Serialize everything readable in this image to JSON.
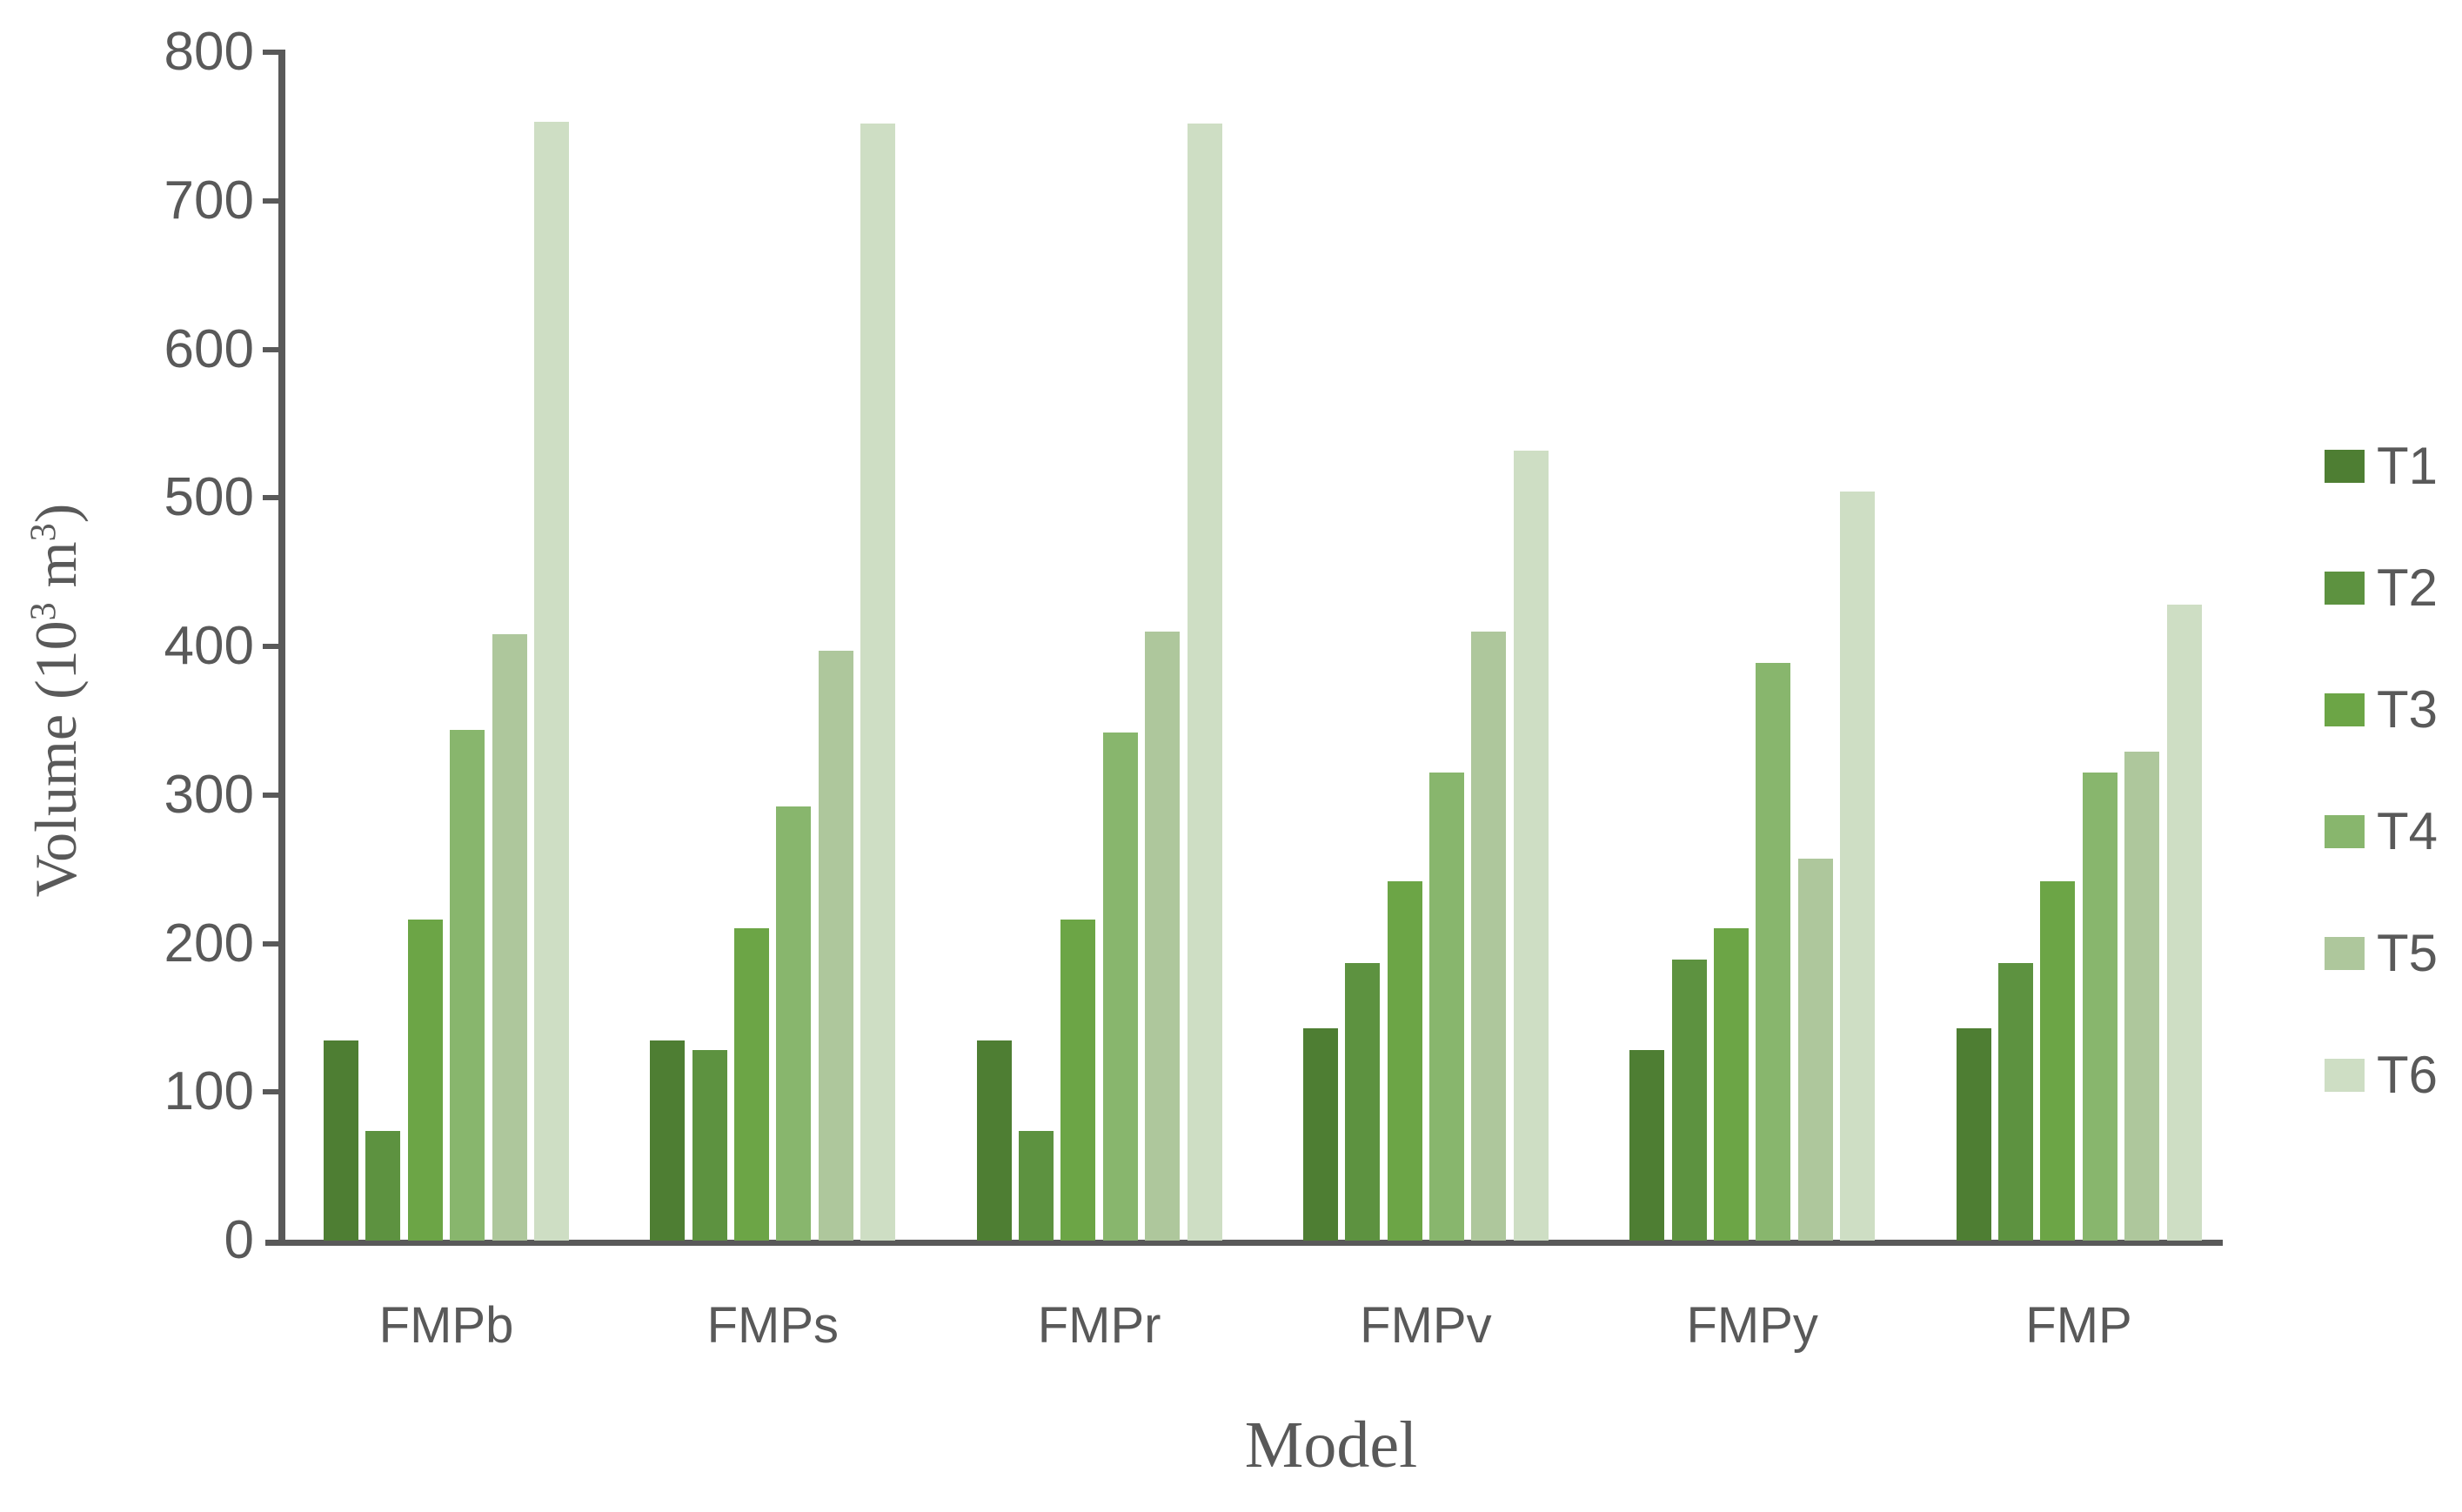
{
  "chart_data": {
    "type": "bar",
    "title": "",
    "xlabel": "Model",
    "ylabel": "Volume (10³ m³)",
    "ylabel_parts": {
      "prefix": "Volume (10",
      "sup1": "3",
      "mid": " m",
      "sup2": "3",
      "suffix": ")"
    },
    "categories": [
      "FMPb",
      "FMPs",
      "FMPr",
      "FMPv",
      "FMPy",
      "FMP"
    ],
    "series": [
      {
        "name": "T1",
        "color": "#4E7E33",
        "values": [
          135,
          135,
          135,
          143,
          128,
          143
        ]
      },
      {
        "name": "T2",
        "color": "#5D9240",
        "values": [
          74,
          128,
          74,
          187,
          189,
          187
        ]
      },
      {
        "name": "T3",
        "color": "#6CA546",
        "values": [
          216,
          210,
          216,
          242,
          210,
          242
        ]
      },
      {
        "name": "T4",
        "color": "#88B66D",
        "values": [
          344,
          292,
          342,
          315,
          389,
          315
        ]
      },
      {
        "name": "T5",
        "color": "#AEC79C",
        "values": [
          408,
          397,
          410,
          410,
          257,
          329
        ]
      },
      {
        "name": "T6",
        "color": "#CEDEC4",
        "values": [
          753,
          752,
          752,
          532,
          504,
          428
        ]
      }
    ],
    "ylim": [
      0,
      800
    ],
    "ytick_step": 100,
    "yticks": [
      0,
      100,
      200,
      300,
      400,
      500,
      600,
      700,
      800
    ],
    "grid": false,
    "legend_position": "right",
    "legend_labels": [
      "T1",
      "T2",
      "T3",
      "T4",
      "T5",
      "T6"
    ],
    "axis_color": "#595959",
    "text_color": "#595959"
  }
}
